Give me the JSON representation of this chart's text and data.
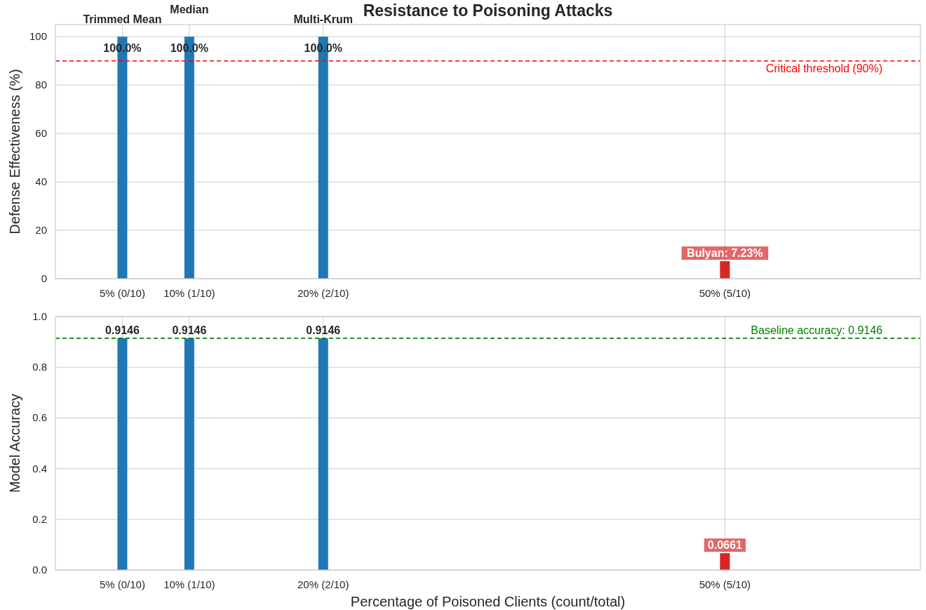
{
  "chart_data": [
    {
      "type": "bar",
      "title": "Resistance to Poisoning Attacks",
      "ylabel": "Defense Effectiveness (%)",
      "categories": [
        null,
        "5% (0/10)",
        "10% (1/10)",
        null,
        "20% (2/10)",
        null,
        null,
        null,
        null,
        null,
        "50% (5/10)",
        null,
        null
      ],
      "values": [
        null,
        100,
        100,
        null,
        100,
        null,
        null,
        null,
        null,
        null,
        7.23,
        null,
        null
      ],
      "colors": [
        null,
        "#1f77b4",
        "#1f77b4",
        null,
        "#1f77b4",
        null,
        null,
        null,
        null,
        null,
        "#d62728",
        null,
        null
      ],
      "value_labels": [
        null,
        "100.0%",
        "100.0%",
        null,
        "100.0%",
        null,
        null,
        null,
        null,
        null,
        "Bulyan: 7.23%",
        null,
        null
      ],
      "ylim": [
        0,
        105
      ],
      "yticks": [
        0,
        20,
        40,
        60,
        80,
        100
      ],
      "ref_lines": [
        {
          "axis": "y",
          "value": 90,
          "label": "Critical threshold (90%)",
          "color": "#ff0000",
          "line_style": "dashed"
        }
      ],
      "annotations": [
        "Trimmed Mean",
        "Median",
        "Multi-Krum"
      ],
      "grid": true
    },
    {
      "type": "bar",
      "ylabel": "Model Accuracy",
      "xlabel": "Percentage of Poisoned Clients (count/total)",
      "categories": [
        null,
        "5% (0/10)",
        "10% (1/10)",
        null,
        "20% (2/10)",
        null,
        null,
        null,
        null,
        null,
        "50% (5/10)",
        null,
        null
      ],
      "values": [
        null,
        0.9146,
        0.9146,
        null,
        0.9146,
        null,
        null,
        null,
        null,
        null,
        0.0661,
        null,
        null
      ],
      "colors": [
        null,
        "#1f77b4",
        "#1f77b4",
        null,
        "#1f77b4",
        null,
        null,
        null,
        null,
        null,
        "#d62728",
        null,
        null
      ],
      "data_labels": true,
      "ylim": [
        0,
        1
      ],
      "yticks": [
        {
          "value": 0,
          "label": "0.0"
        },
        {
          "value": 0.2,
          "label": "0.2"
        },
        {
          "value": 0.4,
          "label": "0.4"
        },
        {
          "value": 0.6,
          "label": "0.6"
        },
        {
          "value": 0.8,
          "label": "0.8"
        },
        {
          "value": 1,
          "label": "1.0"
        }
      ],
      "ref_lines": [
        {
          "axis": "y",
          "value": 0.9146,
          "label": "Baseline accuracy: 0.9146",
          "color": "#008000",
          "line_style": "dashed"
        }
      ],
      "grid": true
    }
  ]
}
